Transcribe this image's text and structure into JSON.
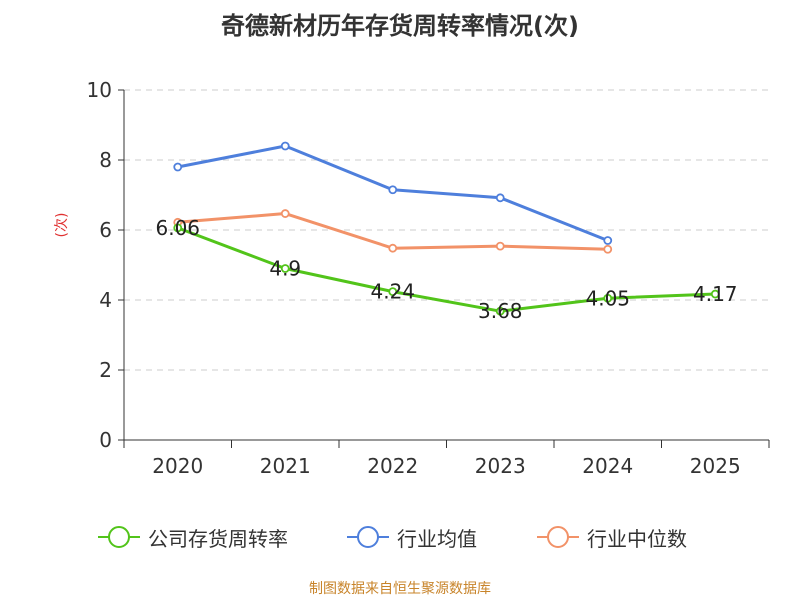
{
  "title": "奇德新材历年存货周转率情况(次)",
  "source": "制图数据来自恒生聚源数据库",
  "chart_data": {
    "type": "line",
    "ylabel": "(次)",
    "categories": [
      "2020",
      "2021",
      "2022",
      "2023",
      "2024",
      "2025"
    ],
    "ylim": [
      0,
      10
    ],
    "yticks": [
      0,
      2,
      4,
      6,
      8,
      10
    ],
    "grid": true,
    "legend_position": "bottom",
    "series": [
      {
        "name": "公司存货周转率",
        "color": "#52c41a",
        "values": [
          6.06,
          4.9,
          4.24,
          3.68,
          4.05,
          4.17
        ],
        "labels": [
          "6.06",
          "4.9",
          "4.24",
          "3.68",
          "4.05",
          "4.17"
        ]
      },
      {
        "name": "行业均值",
        "color": "#4e7fdc",
        "values": [
          7.8,
          8.4,
          7.15,
          6.92,
          5.7,
          null
        ]
      },
      {
        "name": "行业中位数",
        "color": "#f29268",
        "values": [
          6.22,
          6.47,
          5.48,
          5.54,
          5.45,
          null
        ]
      }
    ]
  }
}
